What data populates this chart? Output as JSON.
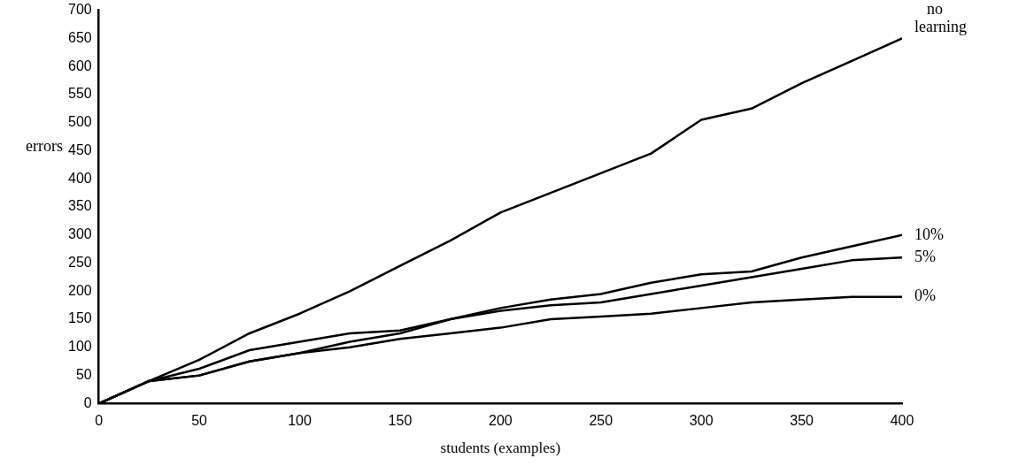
{
  "chart_data": {
    "type": "line",
    "xlabel": "students (examples)",
    "ylabel": "errors",
    "x": [
      0,
      25,
      50,
      75,
      100,
      125,
      150,
      175,
      200,
      225,
      250,
      275,
      300,
      325,
      350,
      375,
      400
    ],
    "xlim": [
      0,
      400
    ],
    "xticks": [
      0,
      50,
      100,
      150,
      200,
      250,
      300,
      350,
      400
    ],
    "ylim": [
      0,
      700
    ],
    "yticks": [
      0,
      50,
      100,
      150,
      200,
      250,
      300,
      350,
      400,
      450,
      500,
      550,
      600,
      650,
      700
    ],
    "grid": false,
    "legend": false,
    "marker": "none",
    "line_style": "solid",
    "series": [
      {
        "name": "no learning",
        "color": "#000000",
        "values": [
          0,
          40,
          78,
          125,
          160,
          200,
          245,
          290,
          340,
          375,
          410,
          445,
          505,
          525,
          570,
          610,
          650
        ]
      },
      {
        "name": "10%",
        "color": "#000000",
        "values": [
          0,
          40,
          62,
          95,
          110,
          125,
          130,
          150,
          170,
          185,
          195,
          215,
          230,
          235,
          260,
          280,
          300
        ]
      },
      {
        "name": "5%",
        "color": "#000000",
        "values": [
          0,
          40,
          50,
          75,
          90,
          110,
          125,
          150,
          165,
          175,
          180,
          195,
          210,
          225,
          240,
          255,
          260
        ]
      },
      {
        "name": "0%",
        "color": "#000000",
        "values": [
          0,
          40,
          50,
          75,
          90,
          100,
          115,
          125,
          135,
          150,
          155,
          160,
          170,
          180,
          185,
          190,
          190
        ]
      }
    ]
  }
}
